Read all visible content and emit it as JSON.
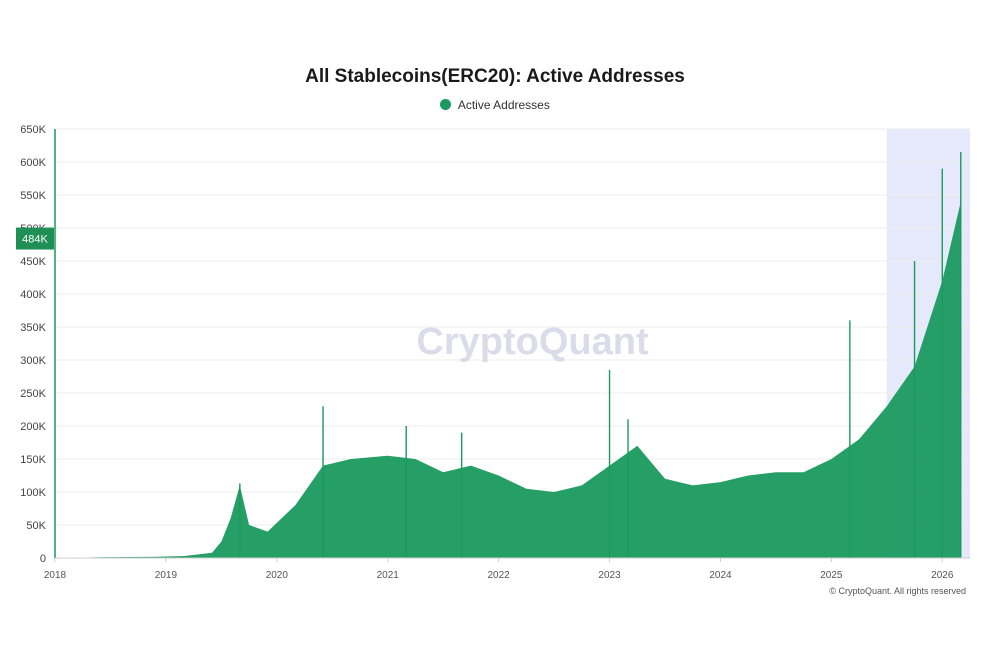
{
  "chart_data": {
    "type": "area",
    "title": "All Stablecoins(ERC20): Active Addresses",
    "xlabel": "",
    "ylabel": "",
    "series": [
      {
        "name": "Active Addresses",
        "color": "#1a9a5f",
        "x": [
          "2018-03",
          "2018-06",
          "2018-09",
          "2018-12",
          "2019-03",
          "2019-06",
          "2019-07",
          "2019-08",
          "2019-09",
          "2019-10",
          "2019-12",
          "2020-03",
          "2020-06",
          "2020-09",
          "2021-01",
          "2021-04",
          "2021-07",
          "2021-10",
          "2022-01",
          "2022-04",
          "2022-07",
          "2022-10",
          "2023-01",
          "2023-04",
          "2023-07",
          "2023-10",
          "2024-01",
          "2024-04",
          "2024-07",
          "2024-10",
          "2025-01",
          "2025-04",
          "2025-07",
          "2025-10",
          "2026-01",
          "2026-03"
        ],
        "values": [
          500,
          1000,
          1500,
          2000,
          3000,
          8000,
          25000,
          60000,
          110000,
          50000,
          40000,
          80000,
          140000,
          150000,
          155000,
          150000,
          130000,
          140000,
          125000,
          105000,
          100000,
          110000,
          140000,
          170000,
          120000,
          110000,
          115000,
          125000,
          130000,
          130000,
          150000,
          180000,
          230000,
          290000,
          420000,
          540000
        ]
      }
    ],
    "spikes": [
      {
        "x": "2019-09",
        "y": 113000
      },
      {
        "x": "2020-06",
        "y": 230000
      },
      {
        "x": "2021-03",
        "y": 200000
      },
      {
        "x": "2021-09",
        "y": 190000
      },
      {
        "x": "2023-01",
        "y": 285000
      },
      {
        "x": "2023-03",
        "y": 210000
      },
      {
        "x": "2025-03",
        "y": 360000
      },
      {
        "x": "2025-10",
        "y": 450000
      },
      {
        "x": "2026-01",
        "y": 590000
      },
      {
        "x": "2026-03",
        "y": 615000
      }
    ],
    "x_ticks": [
      "2018",
      "2019",
      "2020",
      "2021",
      "2022",
      "2023",
      "2024",
      "2025",
      "2026"
    ],
    "y_ticks": [
      "0",
      "50K",
      "100K",
      "150K",
      "200K",
      "250K",
      "300K",
      "350K",
      "400K",
      "450K",
      "500K",
      "550K",
      "600K",
      "650K"
    ],
    "ylim": [
      0,
      650000
    ],
    "xlim": [
      "2018-01",
      "2026-04"
    ],
    "highlight_band": {
      "from": "2025-07",
      "to": "2026-04",
      "color": "#e6e9fb"
    },
    "current_value_label": {
      "text": "484K",
      "value": 484000
    },
    "legend_position": "top-center",
    "grid": "horizontal",
    "watermark": "CryptoQuant",
    "copyright": "© CryptoQuant. All rights reserved"
  }
}
